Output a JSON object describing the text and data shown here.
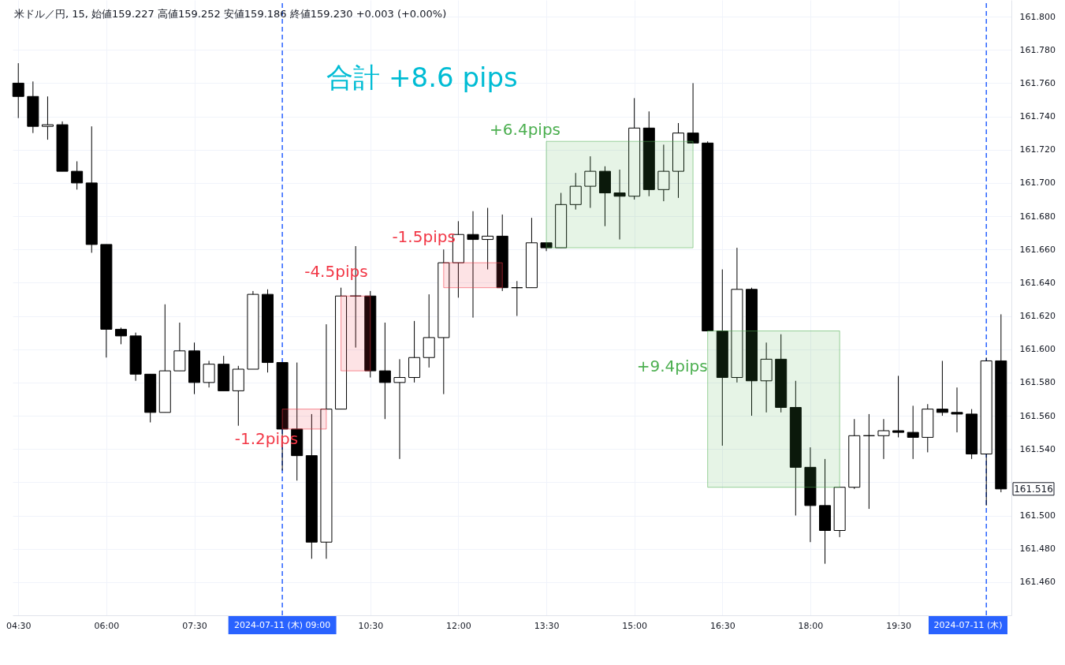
{
  "chart_data": {
    "type": "candlestick",
    "title": "米ドル／円, 15, 始値159.227 高値159.252 安値159.186 終値159.230 +0.003 (+0.00%)",
    "annotations": [
      "合計 +8.6 pips",
      "161.516"
    ],
    "x": [
      4.5,
      4.75,
      5,
      5.25,
      5.5,
      5.75,
      6,
      6.25,
      6.5,
      6.75,
      7,
      7.25,
      7.5,
      7.75,
      8,
      8.25,
      8.5,
      8.75,
      9,
      9.25,
      9.5,
      9.75,
      10,
      10.25,
      10.5,
      10.75,
      11,
      11.25,
      11.5,
      11.75,
      12,
      12.25,
      12.5,
      12.75,
      13,
      13.25,
      13.5,
      13.75,
      14,
      14.25,
      14.5,
      14.75,
      15,
      15.25,
      15.5,
      15.75,
      16,
      16.25,
      16.5,
      16.75,
      17,
      17.25,
      17.5,
      17.75,
      18,
      18.25,
      18.5,
      18.75,
      19,
      19.25,
      19.5,
      19.75,
      20,
      20.25,
      20.5,
      20.75,
      21,
      21.25
    ],
    "ohlc": [
      [
        161.76,
        161.772,
        161.739,
        161.752
      ],
      [
        161.752,
        161.761,
        161.73,
        161.734
      ],
      [
        161.734,
        161.752,
        161.726,
        161.735
      ],
      [
        161.735,
        161.737,
        161.707,
        161.707
      ],
      [
        161.707,
        161.713,
        161.696,
        161.7
      ],
      [
        161.7,
        161.734,
        161.658,
        161.663
      ],
      [
        161.663,
        161.663,
        161.595,
        161.612
      ],
      [
        161.612,
        161.613,
        161.603,
        161.608
      ],
      [
        161.608,
        161.61,
        161.581,
        161.585
      ],
      [
        161.585,
        161.585,
        161.556,
        161.562
      ],
      [
        161.562,
        161.627,
        161.562,
        161.587
      ],
      [
        161.587,
        161.616,
        161.587,
        161.599
      ],
      [
        161.599,
        161.604,
        161.573,
        161.58
      ],
      [
        161.58,
        161.593,
        161.577,
        161.591
      ],
      [
        161.591,
        161.596,
        161.575,
        161.575
      ],
      [
        161.575,
        161.59,
        161.554,
        161.588
      ],
      [
        161.588,
        161.635,
        161.588,
        161.633
      ],
      [
        161.633,
        161.636,
        161.586,
        161.592
      ],
      [
        161.592,
        161.592,
        161.527,
        161.552
      ],
      [
        161.552,
        161.592,
        161.521,
        161.536
      ],
      [
        161.536,
        161.561,
        161.474,
        161.484
      ],
      [
        161.484,
        161.615,
        161.474,
        161.564
      ],
      [
        161.564,
        161.637,
        161.564,
        161.632
      ],
      [
        161.632,
        161.662,
        161.601,
        161.632
      ],
      [
        161.632,
        161.635,
        161.583,
        161.587
      ],
      [
        161.587,
        161.616,
        161.558,
        161.58
      ],
      [
        161.58,
        161.594,
        161.534,
        161.583
      ],
      [
        161.583,
        161.617,
        161.58,
        161.595
      ],
      [
        161.595,
        161.633,
        161.589,
        161.607
      ],
      [
        161.607,
        161.66,
        161.573,
        161.652
      ],
      [
        161.652,
        161.677,
        161.631,
        161.669
      ],
      [
        161.669,
        161.683,
        161.619,
        161.666
      ],
      [
        161.666,
        161.685,
        161.648,
        161.668
      ],
      [
        161.668,
        161.681,
        161.635,
        161.637
      ],
      [
        161.637,
        161.641,
        161.62,
        161.637
      ],
      [
        161.637,
        161.679,
        161.637,
        161.664
      ],
      [
        161.664,
        161.664,
        161.659,
        161.661
      ],
      [
        161.661,
        161.694,
        161.661,
        161.687
      ],
      [
        161.687,
        161.706,
        161.684,
        161.698
      ],
      [
        161.698,
        161.716,
        161.685,
        161.707
      ],
      [
        161.707,
        161.71,
        161.674,
        161.694
      ],
      [
        161.694,
        161.708,
        161.666,
        161.692
      ],
      [
        161.692,
        161.751,
        161.69,
        161.733
      ],
      [
        161.733,
        161.743,
        161.692,
        161.696
      ],
      [
        161.696,
        161.723,
        161.689,
        161.707
      ],
      [
        161.707,
        161.736,
        161.691,
        161.73
      ],
      [
        161.73,
        161.76,
        161.724,
        161.724
      ],
      [
        161.724,
        161.725,
        161.611,
        161.611
      ],
      [
        161.611,
        161.648,
        161.542,
        161.583
      ],
      [
        161.583,
        161.661,
        161.58,
        161.636
      ],
      [
        161.636,
        161.637,
        161.56,
        161.581
      ],
      [
        161.581,
        161.604,
        161.562,
        161.594
      ],
      [
        161.594,
        161.609,
        161.562,
        161.565
      ],
      [
        161.565,
        161.581,
        161.5,
        161.529
      ],
      [
        161.529,
        161.541,
        161.484,
        161.506
      ],
      [
        161.506,
        161.534,
        161.471,
        161.491
      ],
      [
        161.491,
        161.517,
        161.487,
        161.517
      ],
      [
        161.517,
        161.558,
        161.516,
        161.548
      ],
      [
        161.548,
        161.561,
        161.504,
        161.548
      ],
      [
        161.548,
        161.558,
        161.534,
        161.551
      ],
      [
        161.551,
        161.584,
        161.547,
        161.55
      ],
      [
        161.55,
        161.566,
        161.534,
        161.547
      ],
      [
        161.547,
        161.567,
        161.538,
        161.564
      ],
      [
        161.564,
        161.593,
        161.56,
        161.562
      ],
      [
        161.562,
        161.577,
        161.55,
        161.561
      ],
      [
        161.561,
        161.564,
        161.534,
        161.537
      ],
      [
        161.537,
        161.595,
        161.506,
        161.593
      ],
      [
        161.593,
        161.621,
        161.514,
        161.516
      ]
    ],
    "color": "#000000",
    "series": [
      {
        "type": "line",
        "name": "-1.2pips",
        "color": "#f23645",
        "x": [
          9,
          9.75
        ],
        "values": [
          null,
          null
        ],
        "lower": [
          161.552,
          161.552
        ],
        "upper": [
          161.564,
          161.564
        ]
      },
      {
        "type": "line",
        "name": "-4.5pips",
        "color": "#f23645",
        "x": [
          10,
          10.5
        ],
        "values": [
          null,
          null
        ],
        "lower": [
          161.587,
          161.587
        ],
        "upper": [
          161.632,
          161.632
        ]
      },
      {
        "type": "line",
        "name": "-1.5pips",
        "color": "#f23645",
        "x": [
          11.75,
          12.75
        ],
        "values": [
          null,
          null
        ],
        "lower": [
          161.637,
          161.637
        ],
        "upper": [
          161.652,
          161.652
        ]
      },
      {
        "type": "line",
        "name": "+6.4pips",
        "color": "#4caf50",
        "x": [
          13.5,
          16
        ],
        "values": [
          null,
          null
        ],
        "lower": [
          161.661,
          161.661
        ],
        "upper": [
          161.725,
          161.725
        ]
      },
      {
        "type": "line",
        "name": "+9.4pips",
        "color": "#4caf50",
        "x": [
          16.25,
          18.5
        ],
        "values": [
          null,
          null
        ],
        "lower": [
          161.517,
          161.517
        ],
        "upper": [
          161.611,
          161.611
        ]
      }
    ],
    "ref_lines": [
      {
        "axis": "x",
        "value": 9,
        "label": "2024-07-11 (木) 09:00",
        "color": "#2962ff",
        "line_style": "dashed"
      },
      {
        "axis": "x",
        "value": 21,
        "label": "2024-07-11 (木)",
        "color": "#2962ff",
        "line_style": "dashed"
      }
    ],
    "xlim": [
      4.47,
      21.36
    ],
    "ylim": [
      161.44,
      161.81
    ],
    "xticks": [
      {
        "value": 4.5,
        "label": "04:30"
      },
      {
        "value": 6,
        "label": "06:00"
      },
      {
        "value": 7.5,
        "label": "07:30"
      },
      {
        "value": 10.5,
        "label": "10:30"
      },
      {
        "value": 12,
        "label": "12:00"
      },
      {
        "value": 13.5,
        "label": "13:30"
      },
      {
        "value": 15,
        "label": "15:00"
      },
      {
        "value": 16.5,
        "label": "16:30"
      },
      {
        "value": 18,
        "label": "18:00"
      },
      {
        "value": 19.5,
        "label": "19:30"
      }
    ],
    "yticks": [
      {
        "value": 161.46,
        "label": "161.460"
      },
      {
        "value": 161.48,
        "label": "161.480"
      },
      {
        "value": 161.5,
        "label": "161.500"
      },
      {
        "value": 161.52,
        "label": null
      },
      {
        "value": 161.54,
        "label": "161.540"
      },
      {
        "value": 161.56,
        "label": "161.560"
      },
      {
        "value": 161.58,
        "label": "161.580"
      },
      {
        "value": 161.6,
        "label": "161.600"
      },
      {
        "value": 161.62,
        "label": "161.620"
      },
      {
        "value": 161.64,
        "label": "161.640"
      },
      {
        "value": 161.66,
        "label": "161.660"
      },
      {
        "value": 161.68,
        "label": "161.680"
      },
      {
        "value": 161.7,
        "label": "161.700"
      },
      {
        "value": 161.72,
        "label": "161.720"
      },
      {
        "value": 161.74,
        "label": "161.740"
      },
      {
        "value": 161.76,
        "label": "161.760"
      },
      {
        "value": 161.78,
        "label": "161.780"
      },
      {
        "value": 161.8,
        "label": "161.800"
      }
    ],
    "grid": true
  }
}
